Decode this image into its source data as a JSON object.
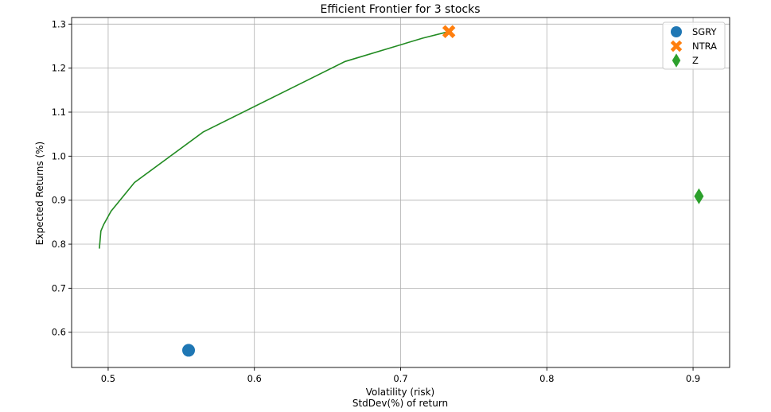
{
  "chart_data": {
    "type": "scatter",
    "title": "Efficient Frontier for 3 stocks",
    "xlabel_lines": [
      "Volatility (risk)",
      "StdDev(%) of return"
    ],
    "ylabel": "Expected Returns (%)",
    "xlim": [
      0.475,
      0.925
    ],
    "ylim": [
      0.52,
      1.315
    ],
    "xticks": [
      0.5,
      0.6,
      0.7,
      0.8,
      0.9
    ],
    "xtick_labels": [
      "0.5",
      "0.6",
      "0.7",
      "0.8",
      "0.9"
    ],
    "yticks": [
      0.6,
      0.7,
      0.8,
      0.9,
      1.0,
      1.1,
      1.2,
      1.3
    ],
    "ytick_labels": [
      "0.6",
      "0.7",
      "0.8",
      "0.9",
      "1.0",
      "1.1",
      "1.2",
      "1.3"
    ],
    "grid": true,
    "legend_position": "top-right",
    "frontier": {
      "color": "#228b22",
      "x": [
        0.494,
        0.495,
        0.497,
        0.502,
        0.518,
        0.565,
        0.662,
        0.715,
        0.733
      ],
      "y": [
        0.79,
        0.83,
        0.845,
        0.875,
        0.94,
        1.055,
        1.215,
        1.268,
        1.283
      ]
    },
    "series": [
      {
        "name": "SGRY",
        "marker": "circle",
        "color": "#1f77b4",
        "x": 0.555,
        "y": 0.559
      },
      {
        "name": "NTRA",
        "marker": "x",
        "color": "#ff7f0e",
        "x": 0.733,
        "y": 1.283
      },
      {
        "name": "Z",
        "marker": "diamond",
        "color": "#2ca02c",
        "x": 0.904,
        "y": 0.909
      }
    ]
  }
}
